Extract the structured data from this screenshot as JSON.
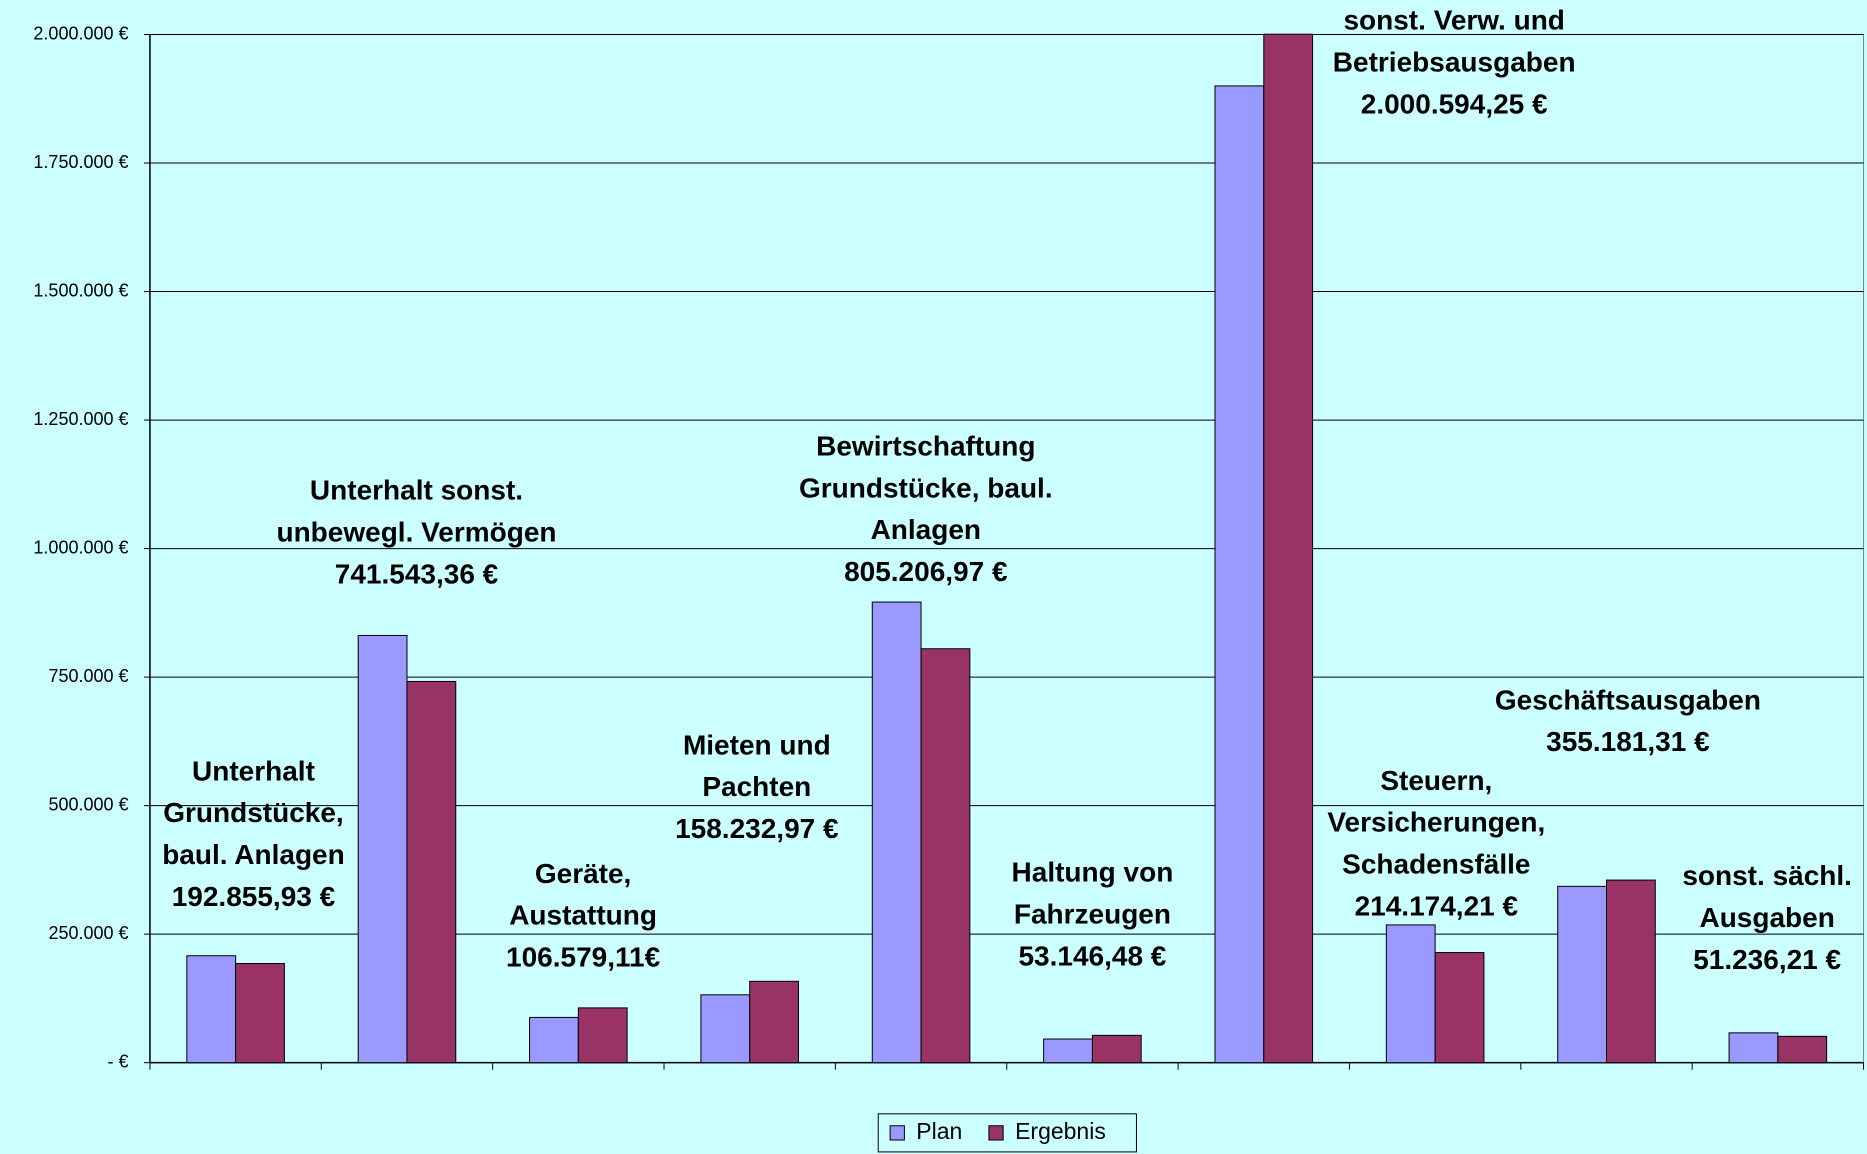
{
  "chart_data": {
    "type": "bar",
    "categories": [
      "Unterhalt\nGrundstücke,\nbaul. Anlagen",
      "Unterhalt sonst.\nunbewegl. Vermögen",
      "Geräte,\nAustattung",
      "Mieten und\nPachten",
      "Bewirtschaftung\nGrundstücke, baul.\nAnlagen",
      "Haltung von\nFahrzeugen",
      "sonst. Verw. und\nBetriebsausgaben",
      "Steuern,\nVersicherungen,\nSchadensfälle",
      "Geschäftsausgaben",
      "sonst. sächl.\nAusgaben"
    ],
    "series": [
      {
        "name": "Plan",
        "color": "#9999ff",
        "values": [
          208000,
          831000,
          88000,
          132000,
          896000,
          46000,
          1900000,
          268000,
          343000,
          58000
        ]
      },
      {
        "name": "Ergebnis",
        "color": "#993366",
        "values": [
          192855.93,
          741543.36,
          106579.11,
          158232.97,
          805206.97,
          53146.48,
          2000594.25,
          214174.21,
          355181.31,
          51236.21
        ],
        "value_labels": [
          "192.855,93 €",
          "741.543,36 €",
          "106.579,11€",
          "158.232,97 €",
          "805.206,97 €",
          "53.146,48 €",
          "2.000.594,25 €",
          "214.174,21 €",
          "355.181,31 €",
          "51.236,21 €"
        ]
      }
    ],
    "ylim": [
      0,
      2000000
    ],
    "yticks": [
      {
        "value": 0,
        "label": "- €"
      },
      {
        "value": 250000,
        "label": "250.000 €"
      },
      {
        "value": 500000,
        "label": "500.000 €"
      },
      {
        "value": 750000,
        "label": "750.000 €"
      },
      {
        "value": 1000000,
        "label": "1.000.000 €"
      },
      {
        "value": 1250000,
        "label": "1.250.000 €"
      },
      {
        "value": 1500000,
        "label": "1.500.000 €"
      },
      {
        "value": 1750000,
        "label": "1.750.000 €"
      },
      {
        "value": 2000000,
        "label": "2.000.000 €"
      }
    ],
    "grid": true,
    "legend": "bottom"
  }
}
